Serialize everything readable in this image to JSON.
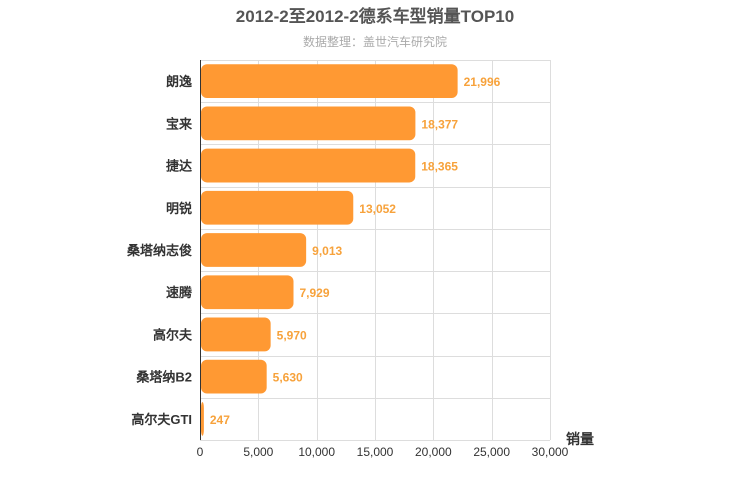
{
  "chart_data": {
    "type": "bar",
    "orientation": "horizontal",
    "title": "2012-2至2012-2德系车型销量TOP10",
    "subtitle": "数据整理：盖世汽车研究院",
    "categories": [
      "朗逸",
      "宝来",
      "捷达",
      "明锐",
      "桑塔纳志俊",
      "速腾",
      "高尔夫",
      "桑塔纳B2",
      "高尔夫GTI"
    ],
    "values": [
      21996,
      18377,
      18365,
      13052,
      9013,
      7929,
      5970,
      5630,
      247
    ],
    "value_labels": [
      "21,996",
      "18,377",
      "18,365",
      "13,052",
      "9,013",
      "7,929",
      "5,970",
      "5,630",
      "247"
    ],
    "xlabel": "销量",
    "ylabel": "",
    "xlim": [
      0,
      30000
    ],
    "xticks": [
      0,
      5000,
      10000,
      15000,
      20000,
      25000,
      30000
    ],
    "xtick_labels": [
      "0",
      "5,000",
      "10,000",
      "15,000",
      "20,000",
      "25,000",
      "30,000"
    ],
    "grid": true,
    "bar_color": "#ff9933",
    "label_color": "#f7a23b"
  }
}
